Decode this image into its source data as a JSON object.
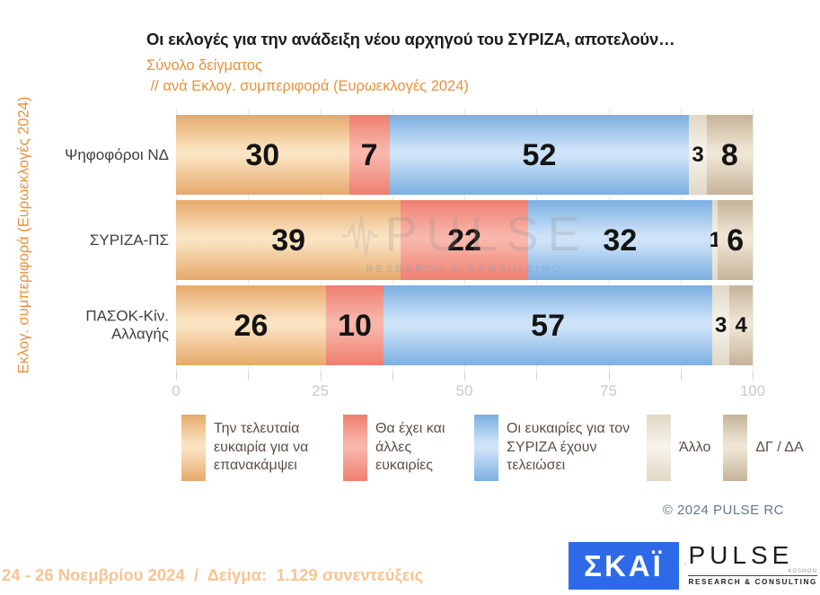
{
  "header": {
    "title": "Οι εκλογές για την ανάδειξη νέου αρχηγού του ΣΥΡΙΖΑ, αποτελούν…",
    "subtitle_sample": "Σύνολο δείγματος",
    "subtitle_breakdown": " // ανά Εκλογ. συμπεριφορά (Ευρωεκλογές 2024)"
  },
  "y_axis_label": "Εκλογ. συμπεριφορά (Ευρωεκλογές 2024)",
  "chart_data": {
    "type": "bar",
    "orientation": "horizontal",
    "stacked": true,
    "grid": true,
    "legend_position": "bottom",
    "xlim": [
      0,
      100
    ],
    "x_ticks": [
      0,
      25,
      50,
      75,
      100
    ],
    "x_minor_tick_step": 12.5,
    "categories": [
      "Ψηφοφόροι ΝΔ",
      "ΣΥΡΙΖΑ-ΠΣ",
      "ΠΑΣΟΚ-Κίν. Αλλαγής"
    ],
    "series": [
      {
        "name": "Την τελευταία ευκαιρία για να επανακάμψει",
        "color": "#EBB377",
        "color_edge": "#E6A96B",
        "color_light": "#FAE3C1",
        "values": [
          30,
          39,
          26
        ]
      },
      {
        "name": "Θα έχει και άλλες ευκαιρίες",
        "color": "#F0897A",
        "color_edge": "#EE7F6F",
        "color_light": "#F9B6AB",
        "values": [
          7,
          22,
          10
        ]
      },
      {
        "name": "Οι ευκαιρίες για τον ΣΥΡΙΖΑ έχουν τελειώσει",
        "color": "#8FBCE8",
        "color_edge": "#7BAFE1",
        "color_light": "#CEE3F8",
        "values": [
          52,
          32,
          57
        ]
      },
      {
        "name": "Άλλο",
        "color": "#EAE3D4",
        "color_edge": "#E0D7C5",
        "color_light": "#F6F2E9",
        "values": [
          3,
          1,
          3
        ]
      },
      {
        "name": "ΔΓ / ΔΑ",
        "color": "#D3C3AB",
        "color_edge": "#C5B399",
        "color_light": "#EFE5D4",
        "values": [
          8,
          6,
          4
        ]
      }
    ]
  },
  "watermark": {
    "name": "PULSE",
    "tagline": "RESEARCH & CONSULTING"
  },
  "footer": {
    "copyright": "© 2024 PULSE RC",
    "fieldwork": "24 - 26 Νοεμβρίου 2024  /  Δείγμα:  1.129 συνεντεύξεις",
    "skai_text": "ΣΚΑΪ",
    "pulse_name": "PULSE",
    "pulse_small": "KOSMON",
    "pulse_tagline": "RESEARCH & CONSULTING"
  },
  "colors": {
    "accent_orange": "#E8913B",
    "fieldwork_peach": "#F7C493",
    "skai_blue": "#2E6AE8",
    "pulse_orange": "#F5861F",
    "legend_text": "#5D4E46",
    "copyright_gray": "#66788A"
  }
}
